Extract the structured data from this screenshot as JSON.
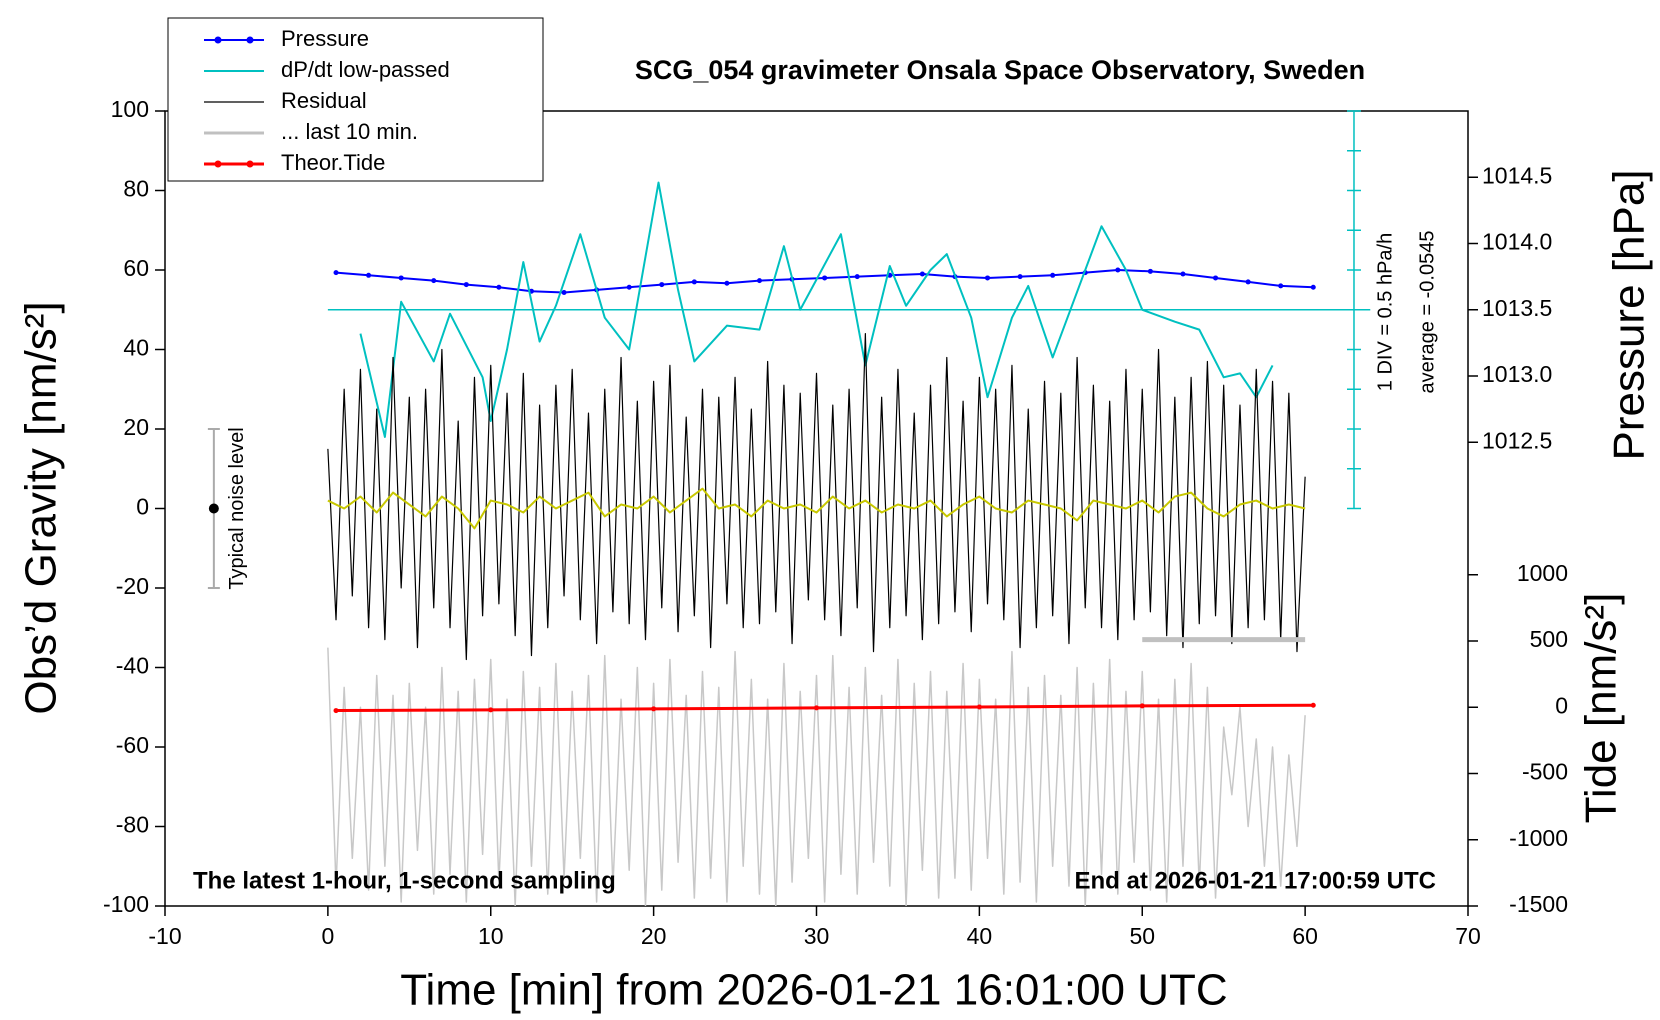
{
  "chart_data": {
    "type": "line",
    "title": "SCG_054 gravimeter Onsala Space Observatory, Sweden",
    "xlabel": "Time [min] from 2026-01-21 16:01:00 UTC",
    "ylabel": "Obs’d Gravity [nm/s²]",
    "y2label": "Pressure [hPa]",
    "y3label": "Tide [nm/s²]",
    "annotations": [
      "The latest 1-hour, 1-second sampling",
      "End at 2026-01-21 17:00:59 UTC",
      "1 DIV = 0.5 hPa/h",
      "average = -0.0545"
    ],
    "xlim": [
      -10,
      70
    ],
    "xticks": [
      -10,
      0,
      10,
      20,
      30,
      40,
      50,
      60,
      70
    ],
    "ylim": [
      -100,
      100
    ],
    "yticks": [
      -100,
      -80,
      -60,
      -40,
      -20,
      0,
      20,
      40,
      60,
      80,
      100
    ],
    "y2lim": [
      1009,
      1015
    ],
    "y2ticks": [
      1012.5,
      {
        "value": 1013,
        "label": "1013.0"
      },
      1013.5,
      {
        "value": 1014,
        "label": "1014.0"
      },
      1014.5
    ],
    "y3lim": [
      -1500,
      4500
    ],
    "y3ticks": [
      -1500,
      -1000,
      -500,
      0,
      500,
      1000
    ],
    "dpdt_scale": {
      "x": 63,
      "ticks": [
        0,
        10,
        20,
        30,
        40,
        50,
        60,
        70,
        80,
        90,
        100
      ]
    },
    "average_line": {
      "y": 50,
      "xlim": [
        0,
        64
      ]
    },
    "noise_bar": {
      "x": -7,
      "y": 0,
      "error": 20,
      "label": "Typical noise level"
    },
    "series": [
      {
        "color": "#c8c8c8",
        "linewidth": 1.5,
        "x": [
          0,
          0.5,
          1,
          1.5,
          2,
          2.5,
          3,
          3.5,
          4,
          4.5,
          5,
          5.5,
          6,
          6.5,
          7,
          7.5,
          8,
          8.5,
          9,
          9.5,
          10,
          10.5,
          11,
          11.5,
          12,
          12.5,
          13,
          13.5,
          14,
          14.5,
          15,
          15.5,
          16,
          16.5,
          17,
          17.5,
          18,
          18.5,
          19,
          19.5,
          20,
          20.5,
          21,
          21.5,
          22,
          22.5,
          23,
          23.5,
          24,
          24.5,
          25,
          25.5,
          26,
          26.5,
          27,
          27.5,
          28,
          28.5,
          29,
          29.5,
          30,
          30.5,
          31,
          31.5,
          32,
          32.5,
          33,
          33.5,
          34,
          34.5,
          35,
          35.5,
          36,
          36.5,
          37,
          37.5,
          38,
          38.5,
          39,
          39.5,
          40,
          40.5,
          41,
          41.5,
          42,
          42.5,
          43,
          43.5,
          44,
          44.5,
          45,
          45.5,
          46,
          46.5,
          47,
          47.5,
          48,
          48.5,
          49,
          49.5,
          50,
          50.5,
          51,
          51.5,
          52,
          52.5,
          53,
          53.5,
          54,
          54.5,
          55,
          55.5,
          56,
          56.5,
          57,
          57.5,
          58,
          58.5,
          59,
          59.5,
          60
        ],
        "values": [
          -35,
          -95,
          -45,
          -88,
          -50,
          -96,
          -42,
          -90,
          -47,
          -99,
          -44,
          -86,
          -50,
          -97,
          -40,
          -92,
          -46,
          -99,
          -43,
          -87,
          -38,
          -94,
          -48,
          -100,
          -41,
          -90,
          -45,
          -97,
          -39,
          -93,
          -46,
          -88,
          -42,
          -99,
          -37,
          -95,
          -48,
          -91,
          -40,
          -100,
          -44,
          -96,
          -38,
          -89,
          -47,
          -98,
          -41,
          -93,
          -45,
          -99,
          -36,
          -90,
          -43,
          -97,
          -48,
          -100,
          -39,
          -94,
          -46,
          -88,
          -42,
          -99,
          -37,
          -92,
          -45,
          -97,
          -40,
          -89,
          -47,
          -95,
          -38,
          -100,
          -44,
          -91,
          -41,
          -98,
          -46,
          -93,
          -39,
          -96,
          -43,
          -88,
          -48,
          -97,
          -36,
          -94,
          -45,
          -99,
          -42,
          -90,
          -47,
          -95,
          -40,
          -100,
          -44,
          -92,
          -38,
          -97,
          -46,
          -89,
          -41,
          -96,
          -48,
          -99,
          -43,
          -90,
          -39,
          -95,
          -45,
          -98,
          -55,
          -72,
          -50,
          -80,
          -58,
          -90,
          -60,
          -95,
          -62,
          -85,
          -52
        ]
      },
      {
        "name": "Pressure",
        "color": "#0000ff",
        "axis": "y2",
        "marker": true,
        "linewidth": 2,
        "x": [
          0.5,
          2.5,
          4.5,
          6.5,
          8.5,
          10.5,
          12.5,
          14.5,
          16.5,
          18.5,
          20.5,
          22.5,
          24.5,
          26.5,
          28.5,
          30.5,
          32.5,
          34.5,
          36.5,
          38.5,
          40.5,
          42.5,
          44.5,
          46.5,
          48.5,
          50.5,
          52.5,
          54.5,
          56.5,
          58.5,
          60.5
        ],
        "values": [
          1013.78,
          1013.76,
          1013.74,
          1013.72,
          1013.69,
          1013.67,
          1013.64,
          1013.63,
          1013.65,
          1013.67,
          1013.69,
          1013.71,
          1013.7,
          1013.72,
          1013.73,
          1013.74,
          1013.75,
          1013.76,
          1013.77,
          1013.75,
          1013.74,
          1013.75,
          1013.76,
          1013.78,
          1013.8,
          1013.79,
          1013.77,
          1013.74,
          1013.71,
          1013.68,
          1013.67
        ]
      },
      {
        "name": "dP/dt low-passed",
        "color": "#00c0c0",
        "marker": false,
        "linewidth": 2,
        "x": [
          2,
          3.5,
          4.5,
          6.5,
          7.5,
          9.5,
          10,
          11,
          12,
          13,
          14,
          15.5,
          17,
          18.5,
          20.3,
          21.5,
          22.5,
          24.5,
          26.5,
          28,
          29,
          31.5,
          33,
          34.5,
          35.5,
          37,
          38,
          39.5,
          40.5,
          42,
          43,
          44.5,
          47.5,
          49,
          50,
          52,
          53.5,
          55,
          56,
          57,
          58
        ],
        "values": [
          44,
          18,
          52,
          37,
          49,
          33,
          22,
          40,
          62,
          42,
          51,
          69,
          48,
          40,
          82,
          55,
          37,
          46,
          45,
          66,
          50,
          69,
          36,
          61,
          51,
          60,
          64,
          48,
          28,
          48,
          56,
          38,
          71,
          60,
          50,
          47,
          45,
          33,
          34,
          28,
          36
        ]
      },
      {
        "name": "Residual",
        "color": "#000000",
        "linewidth": 1.2,
        "x": [
          0,
          0.5,
          1,
          1.5,
          2,
          2.5,
          3,
          3.5,
          4,
          4.5,
          5,
          5.5,
          6,
          6.5,
          7,
          7.5,
          8,
          8.5,
          9,
          9.5,
          10,
          10.5,
          11,
          11.5,
          12,
          12.5,
          13,
          13.5,
          14,
          14.5,
          15,
          15.5,
          16,
          16.5,
          17,
          17.5,
          18,
          18.5,
          19,
          19.5,
          20,
          20.5,
          21,
          21.5,
          22,
          22.5,
          23,
          23.5,
          24,
          24.5,
          25,
          25.5,
          26,
          26.5,
          27,
          27.5,
          28,
          28.5,
          29,
          29.5,
          30,
          30.5,
          31,
          31.5,
          32,
          32.5,
          33,
          33.5,
          34,
          34.5,
          35,
          35.5,
          36,
          36.5,
          37,
          37.5,
          38,
          38.5,
          39,
          39.5,
          40,
          40.5,
          41,
          41.5,
          42,
          42.5,
          43,
          43.5,
          44,
          44.5,
          45,
          45.5,
          46,
          46.5,
          47,
          47.5,
          48,
          48.5,
          49,
          49.5,
          50,
          50.5,
          51,
          51.5,
          52,
          52.5,
          53,
          53.5,
          54,
          54.5,
          55,
          55.5,
          56,
          56.5,
          57,
          57.5,
          58,
          58.5,
          59,
          59.5,
          60
        ],
        "values": [
          15,
          -28,
          30,
          -22,
          35,
          -30,
          25,
          -33,
          38,
          -20,
          28,
          -35,
          30,
          -25,
          40,
          -30,
          22,
          -38,
          33,
          -27,
          36,
          -24,
          29,
          -32,
          34,
          -37,
          26,
          -30,
          31,
          -22,
          35,
          -28,
          24,
          -34,
          30,
          -26,
          38,
          -29,
          27,
          -33,
          32,
          -25,
          36,
          -31,
          23,
          -27,
          30,
          -35,
          28,
          -24,
          33,
          -30,
          25,
          -29,
          37,
          -26,
          31,
          -34,
          29,
          -23,
          34,
          -28,
          26,
          -32,
          30,
          -25,
          44,
          -36,
          28,
          -30,
          35,
          -27,
          24,
          -33,
          31,
          -29,
          38,
          -26,
          27,
          -31,
          33,
          -24,
          30,
          -28,
          36,
          -35,
          25,
          -30,
          32,
          -27,
          29,
          -34,
          38,
          -25,
          31,
          -30,
          27,
          -33,
          35,
          -28,
          30,
          -26,
          40,
          -32,
          28,
          -35,
          33,
          -29,
          37,
          -27,
          31,
          -34,
          26,
          -30,
          35,
          -28,
          32,
          -33,
          29,
          -36,
          8
        ]
      },
      {
        "color": "#c8c800",
        "linewidth": 2,
        "x": [
          0,
          1,
          2,
          3,
          4,
          5,
          6,
          7,
          8,
          9,
          10,
          11,
          12,
          13,
          14,
          15,
          16,
          17,
          18,
          19,
          20,
          21,
          22,
          23,
          24,
          25,
          26,
          27,
          28,
          29,
          30,
          31,
          32,
          33,
          34,
          35,
          36,
          37,
          38,
          39,
          40,
          41,
          42,
          43,
          44,
          45,
          46,
          47,
          48,
          49,
          50,
          51,
          52,
          53,
          54,
          55,
          56,
          57,
          58,
          59,
          60
        ],
        "values": [
          2,
          0,
          3,
          -1,
          4,
          1,
          -2,
          3,
          0,
          -5,
          2,
          1,
          -1,
          3,
          0,
          2,
          4,
          -2,
          1,
          0,
          3,
          -1,
          2,
          5,
          0,
          1,
          -2,
          2,
          0,
          1,
          -1,
          3,
          0,
          2,
          -1,
          1,
          0,
          2,
          -2,
          1,
          3,
          0,
          -1,
          2,
          1,
          0,
          -3,
          2,
          1,
          0,
          2,
          -1,
          3,
          4,
          0,
          -2,
          1,
          2,
          0,
          1,
          0
        ]
      },
      {
        "name": "... last 10 min.",
        "color": "#c0c0c0",
        "linewidth": 5,
        "x": [
          50,
          60
        ],
        "values": [
          -33,
          -33
        ]
      },
      {
        "name": "Theor.Tide",
        "color": "#ff0000",
        "axis": "y3",
        "marker": true,
        "linewidth": 3,
        "x": [
          0.5,
          10,
          20,
          30,
          40,
          50,
          60.5
        ],
        "values": [
          -25,
          -20,
          -12,
          -5,
          2,
          10,
          15
        ]
      }
    ]
  }
}
